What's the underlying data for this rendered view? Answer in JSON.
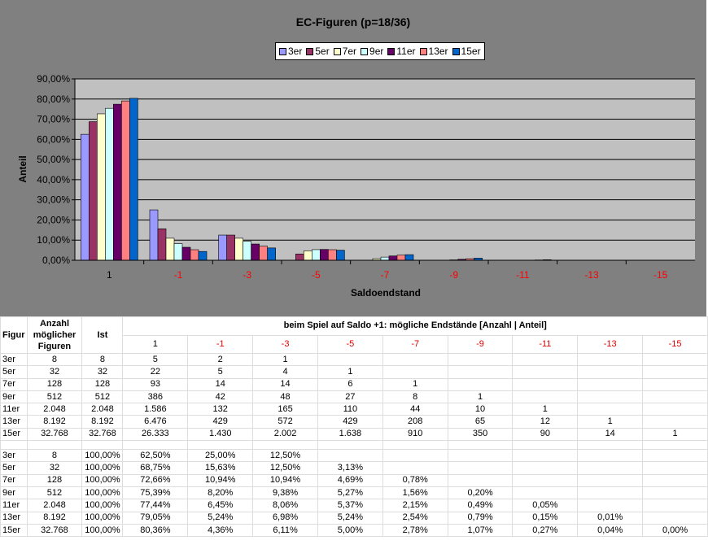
{
  "chart_data": {
    "type": "bar",
    "title": "EC-Figuren (p=18/36)",
    "xlabel": "Saldoendstand",
    "ylabel": "Anteil",
    "ylim": [
      0,
      0.9
    ],
    "yticks": [
      "0,00%",
      "10,00%",
      "20,00%",
      "30,00%",
      "40,00%",
      "50,00%",
      "60,00%",
      "70,00%",
      "80,00%",
      "90,00%"
    ],
    "categories": [
      "1",
      "-1",
      "-3",
      "-5",
      "-7",
      "-9",
      "-11",
      "-13",
      "-15"
    ],
    "legend_position": "top",
    "series": [
      {
        "name": "3er",
        "color": "#9999ff",
        "values": [
          0.625,
          0.25,
          0.125,
          0,
          0,
          0,
          0,
          0,
          0
        ]
      },
      {
        "name": "5er",
        "color": "#993366",
        "values": [
          0.6875,
          0.15625,
          0.125,
          0.03125,
          0,
          0,
          0,
          0,
          0
        ]
      },
      {
        "name": "7er",
        "color": "#ffffcc",
        "values": [
          0.7266,
          0.1094,
          0.1094,
          0.0469,
          0.0078,
          0,
          0,
          0,
          0
        ]
      },
      {
        "name": "9er",
        "color": "#ccffff",
        "values": [
          0.7539,
          0.082,
          0.0938,
          0.0527,
          0.0156,
          0.002,
          0,
          0,
          0
        ]
      },
      {
        "name": "11er",
        "color": "#660066",
        "values": [
          0.7744,
          0.0645,
          0.0806,
          0.0537,
          0.0215,
          0.0049,
          0.0005,
          0,
          0
        ]
      },
      {
        "name": "13er",
        "color": "#ff8080",
        "values": [
          0.7905,
          0.0524,
          0.0698,
          0.0524,
          0.0254,
          0.0079,
          0.0015,
          0.0001,
          0
        ]
      },
      {
        "name": "15er",
        "color": "#0066cc",
        "values": [
          0.8036,
          0.0436,
          0.0611,
          0.05,
          0.0278,
          0.0107,
          0.0027,
          0.0004,
          0.0
        ]
      }
    ]
  },
  "table": {
    "col_figur": "Figur",
    "col_anzahl": "Anzahl möglicher Figuren",
    "col_ist": "Ist",
    "col_group": "beim Spiel auf Saldo +1: mögliche Endstände [Anzahl | Anteil]",
    "col_endstaende": [
      "1",
      "-1",
      "-3",
      "-5",
      "-7",
      "-9",
      "-11",
      "-13",
      "-15"
    ],
    "counts": [
      {
        "fig": "3er",
        "anzahl": "8",
        "ist": "8",
        "vals": [
          "5",
          "2",
          "1",
          "",
          "",
          "",
          "",
          "",
          ""
        ]
      },
      {
        "fig": "5er",
        "anzahl": "32",
        "ist": "32",
        "vals": [
          "22",
          "5",
          "4",
          "1",
          "",
          "",
          "",
          "",
          ""
        ]
      },
      {
        "fig": "7er",
        "anzahl": "128",
        "ist": "128",
        "vals": [
          "93",
          "14",
          "14",
          "6",
          "1",
          "",
          "",
          "",
          ""
        ]
      },
      {
        "fig": "9er",
        "anzahl": "512",
        "ist": "512",
        "vals": [
          "386",
          "42",
          "48",
          "27",
          "8",
          "1",
          "",
          "",
          ""
        ]
      },
      {
        "fig": "11er",
        "anzahl": "2.048",
        "ist": "2.048",
        "vals": [
          "1.586",
          "132",
          "165",
          "110",
          "44",
          "10",
          "1",
          "",
          ""
        ]
      },
      {
        "fig": "13er",
        "anzahl": "8.192",
        "ist": "8.192",
        "vals": [
          "6.476",
          "429",
          "572",
          "429",
          "208",
          "65",
          "12",
          "1",
          ""
        ]
      },
      {
        "fig": "15er",
        "anzahl": "32.768",
        "ist": "32.768",
        "vals": [
          "26.333",
          "1.430",
          "2.002",
          "1.638",
          "910",
          "350",
          "90",
          "14",
          "1"
        ]
      }
    ],
    "shares": [
      {
        "fig": "3er",
        "anzahl": "8",
        "ist": "100,00%",
        "vals": [
          "62,50%",
          "25,00%",
          "12,50%",
          "",
          "",
          "",
          "",
          "",
          ""
        ]
      },
      {
        "fig": "5er",
        "anzahl": "32",
        "ist": "100,00%",
        "vals": [
          "68,75%",
          "15,63%",
          "12,50%",
          "3,13%",
          "",
          "",
          "",
          "",
          ""
        ]
      },
      {
        "fig": "7er",
        "anzahl": "128",
        "ist": "100,00%",
        "vals": [
          "72,66%",
          "10,94%",
          "10,94%",
          "4,69%",
          "0,78%",
          "",
          "",
          "",
          ""
        ]
      },
      {
        "fig": "9er",
        "anzahl": "512",
        "ist": "100,00%",
        "vals": [
          "75,39%",
          "8,20%",
          "9,38%",
          "5,27%",
          "1,56%",
          "0,20%",
          "",
          "",
          ""
        ]
      },
      {
        "fig": "11er",
        "anzahl": "2.048",
        "ist": "100,00%",
        "vals": [
          "77,44%",
          "6,45%",
          "8,06%",
          "5,37%",
          "2,15%",
          "0,49%",
          "0,05%",
          "",
          ""
        ]
      },
      {
        "fig": "13er",
        "anzahl": "8.192",
        "ist": "100,00%",
        "vals": [
          "79,05%",
          "5,24%",
          "6,98%",
          "5,24%",
          "2,54%",
          "0,79%",
          "0,15%",
          "0,01%",
          ""
        ]
      },
      {
        "fig": "15er",
        "anzahl": "32.768",
        "ist": "100,00%",
        "vals": [
          "80,36%",
          "4,36%",
          "6,11%",
          "5,00%",
          "2,78%",
          "1,07%",
          "0,27%",
          "0,04%",
          "0,00%"
        ]
      }
    ]
  }
}
